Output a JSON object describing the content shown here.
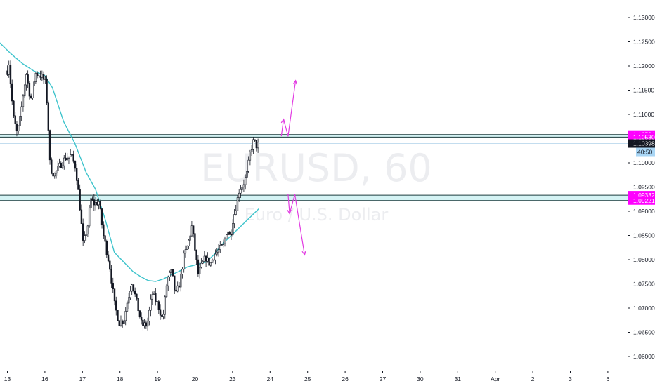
{
  "watermark": {
    "symbol": "EURUSD, 60",
    "description": "Euro / U.S. Dollar"
  },
  "colors": {
    "background": "#ffffff",
    "candle": "#131722",
    "moving_average": "#3fc4cc",
    "zone_fill": "#d4f3f4",
    "zone_border": "#1c3b3d",
    "projection": "#e23ce2",
    "badge_magenta": "#ff00ff",
    "badge_dark": "#131722",
    "badge_countdown": "#a9d6f5"
  },
  "chart_data": {
    "type": "candlestick",
    "symbol": "EURUSD",
    "timeframe": "60",
    "x_ticks": [
      "13",
      "16",
      "17",
      "18",
      "19",
      "20",
      "23",
      "24",
      "25",
      "26",
      "27",
      "30",
      "31",
      "Apr",
      "2",
      "3",
      "6"
    ],
    "y_ticks": [
      "1.13000",
      "1.12500",
      "1.12000",
      "1.11500",
      "1.11000",
      "1.10500",
      "1.10000",
      "1.09500",
      "1.09000",
      "1.08500",
      "1.08000",
      "1.07500",
      "1.07000",
      "1.06500",
      "1.06000"
    ],
    "ylim": [
      1.0585,
      1.1335
    ],
    "price_path": [
      {
        "x": 0,
        "y": 1.119
      },
      {
        "x": 0.05,
        "y": 1.121
      },
      {
        "x": 0.08,
        "y": 1.117
      },
      {
        "x": 0.16,
        "y": 1.1095
      },
      {
        "x": 0.26,
        "y": 1.106
      },
      {
        "x": 0.32,
        "y": 1.108
      },
      {
        "x": 0.42,
        "y": 1.114
      },
      {
        "x": 0.5,
        "y": 1.1185
      },
      {
        "x": 0.62,
        "y": 1.113
      },
      {
        "x": 0.75,
        "y": 1.1185
      },
      {
        "x": 0.9,
        "y": 1.118
      },
      {
        "x": 1.02,
        "y": 1.1165
      },
      {
        "x": 1.08,
        "y": 1.109
      },
      {
        "x": 1.14,
        "y": 1.099
      },
      {
        "x": 1.25,
        "y": 1.0975
      },
      {
        "x": 1.4,
        "y": 1.0995
      },
      {
        "x": 1.55,
        "y": 1.101
      },
      {
        "x": 1.7,
        "y": 1.1015
      },
      {
        "x": 1.82,
        "y": 1.099
      },
      {
        "x": 1.92,
        "y": 1.092
      },
      {
        "x": 2.02,
        "y": 1.083
      },
      {
        "x": 2.14,
        "y": 1.087
      },
      {
        "x": 2.22,
        "y": 1.0925
      },
      {
        "x": 2.32,
        "y": 1.0915
      },
      {
        "x": 2.44,
        "y": 1.092
      },
      {
        "x": 2.56,
        "y": 1.085
      },
      {
        "x": 2.72,
        "y": 1.079
      },
      {
        "x": 2.86,
        "y": 1.0705
      },
      {
        "x": 2.98,
        "y": 1.067
      },
      {
        "x": 3.1,
        "y": 1.0675
      },
      {
        "x": 3.2,
        "y": 1.0715
      },
      {
        "x": 3.32,
        "y": 1.0755
      },
      {
        "x": 3.45,
        "y": 1.071
      },
      {
        "x": 3.58,
        "y": 1.0665
      },
      {
        "x": 3.72,
        "y": 1.0665
      },
      {
        "x": 3.86,
        "y": 1.073
      },
      {
        "x": 4.02,
        "y": 1.0705
      },
      {
        "x": 4.14,
        "y": 1.0675
      },
      {
        "x": 4.26,
        "y": 1.076
      },
      {
        "x": 4.38,
        "y": 1.0775
      },
      {
        "x": 4.48,
        "y": 1.0725
      },
      {
        "x": 4.6,
        "y": 1.0755
      },
      {
        "x": 4.7,
        "y": 1.0805
      },
      {
        "x": 4.82,
        "y": 1.0835
      },
      {
        "x": 4.92,
        "y": 1.087
      },
      {
        "x": 5.0,
        "y": 1.082
      },
      {
        "x": 5.08,
        "y": 1.077
      },
      {
        "x": 5.16,
        "y": 1.0785
      },
      {
        "x": 5.28,
        "y": 1.0805
      },
      {
        "x": 5.4,
        "y": 1.079
      },
      {
        "x": 5.52,
        "y": 1.081
      },
      {
        "x": 5.64,
        "y": 1.082
      },
      {
        "x": 5.76,
        "y": 1.083
      },
      {
        "x": 5.86,
        "y": 1.0865
      },
      {
        "x": 5.94,
        "y": 1.0845
      },
      {
        "x": 6.0,
        "y": 1.088
      },
      {
        "x": 6.08,
        "y": 1.0905
      },
      {
        "x": 6.18,
        "y": 1.0945
      },
      {
        "x": 6.28,
        "y": 1.0955
      },
      {
        "x": 6.38,
        "y": 1.0975
      },
      {
        "x": 6.48,
        "y": 1.1025
      },
      {
        "x": 6.56,
        "y": 1.1045
      },
      {
        "x": 6.64,
        "y": 1.1035
      },
      {
        "x": 6.72,
        "y": 1.104
      }
    ],
    "moving_average": [
      {
        "x": -0.3,
        "y": 1.1255
      },
      {
        "x": 0.1,
        "y": 1.1225
      },
      {
        "x": 0.4,
        "y": 1.1205
      },
      {
        "x": 0.7,
        "y": 1.119
      },
      {
        "x": 1.0,
        "y": 1.118
      },
      {
        "x": 1.2,
        "y": 1.1155
      },
      {
        "x": 1.5,
        "y": 1.1085
      },
      {
        "x": 1.8,
        "y": 1.104
      },
      {
        "x": 2.1,
        "y": 1.098
      },
      {
        "x": 2.35,
        "y": 1.0945
      },
      {
        "x": 2.6,
        "y": 1.0885
      },
      {
        "x": 2.85,
        "y": 1.0815
      },
      {
        "x": 3.1,
        "y": 1.0795
      },
      {
        "x": 3.35,
        "y": 1.0775
      },
      {
        "x": 3.55,
        "y": 1.0765
      },
      {
        "x": 3.75,
        "y": 1.0757
      },
      {
        "x": 3.95,
        "y": 1.0755
      },
      {
        "x": 4.15,
        "y": 1.076
      },
      {
        "x": 4.35,
        "y": 1.0768
      },
      {
        "x": 4.55,
        "y": 1.0775
      },
      {
        "x": 4.8,
        "y": 1.0785
      },
      {
        "x": 5.05,
        "y": 1.079
      },
      {
        "x": 5.3,
        "y": 1.0795
      },
      {
        "x": 5.5,
        "y": 1.081
      },
      {
        "x": 5.7,
        "y": 1.083
      },
      {
        "x": 5.9,
        "y": 1.0845
      },
      {
        "x": 6.1,
        "y": 1.086
      },
      {
        "x": 6.3,
        "y": 1.0875
      },
      {
        "x": 6.5,
        "y": 1.089
      },
      {
        "x": 6.7,
        "y": 1.0905
      }
    ],
    "zones": [
      {
        "name": "resistance",
        "low": 1.1053,
        "high": 1.10584
      },
      {
        "name": "support",
        "low": 1.09221,
        "high": 1.09332
      }
    ],
    "current_price_line": 1.10398,
    "projections": [
      {
        "name": "bullish",
        "points": [
          {
            "x": 7.3,
            "y": 1.1055
          },
          {
            "x": 7.36,
            "y": 1.109
          },
          {
            "x": 7.48,
            "y": 1.1055
          },
          {
            "x": 7.68,
            "y": 1.117
          }
        ],
        "arrow_heads": [
          1,
          3
        ]
      },
      {
        "name": "bearish",
        "points": [
          {
            "x": 7.48,
            "y": 1.0935
          },
          {
            "x": 7.52,
            "y": 1.0895
          },
          {
            "x": 7.66,
            "y": 1.0935
          },
          {
            "x": 7.92,
            "y": 1.081
          }
        ],
        "arrow_heads": [
          1,
          3
        ]
      }
    ],
    "price_labels": [
      {
        "text": "1.10584",
        "price": 1.10584,
        "style": "magenta"
      },
      {
        "text": "1.10530",
        "price": 1.1053,
        "style": "magenta"
      },
      {
        "text": "1.10398",
        "price": 1.10398,
        "style": "dark"
      },
      {
        "text": "1.09332",
        "price": 1.09332,
        "style": "magenta"
      },
      {
        "text": "1.09221",
        "price": 1.09221,
        "style": "magenta"
      }
    ],
    "countdown": {
      "text": "40:50",
      "price": 1.10398
    }
  }
}
